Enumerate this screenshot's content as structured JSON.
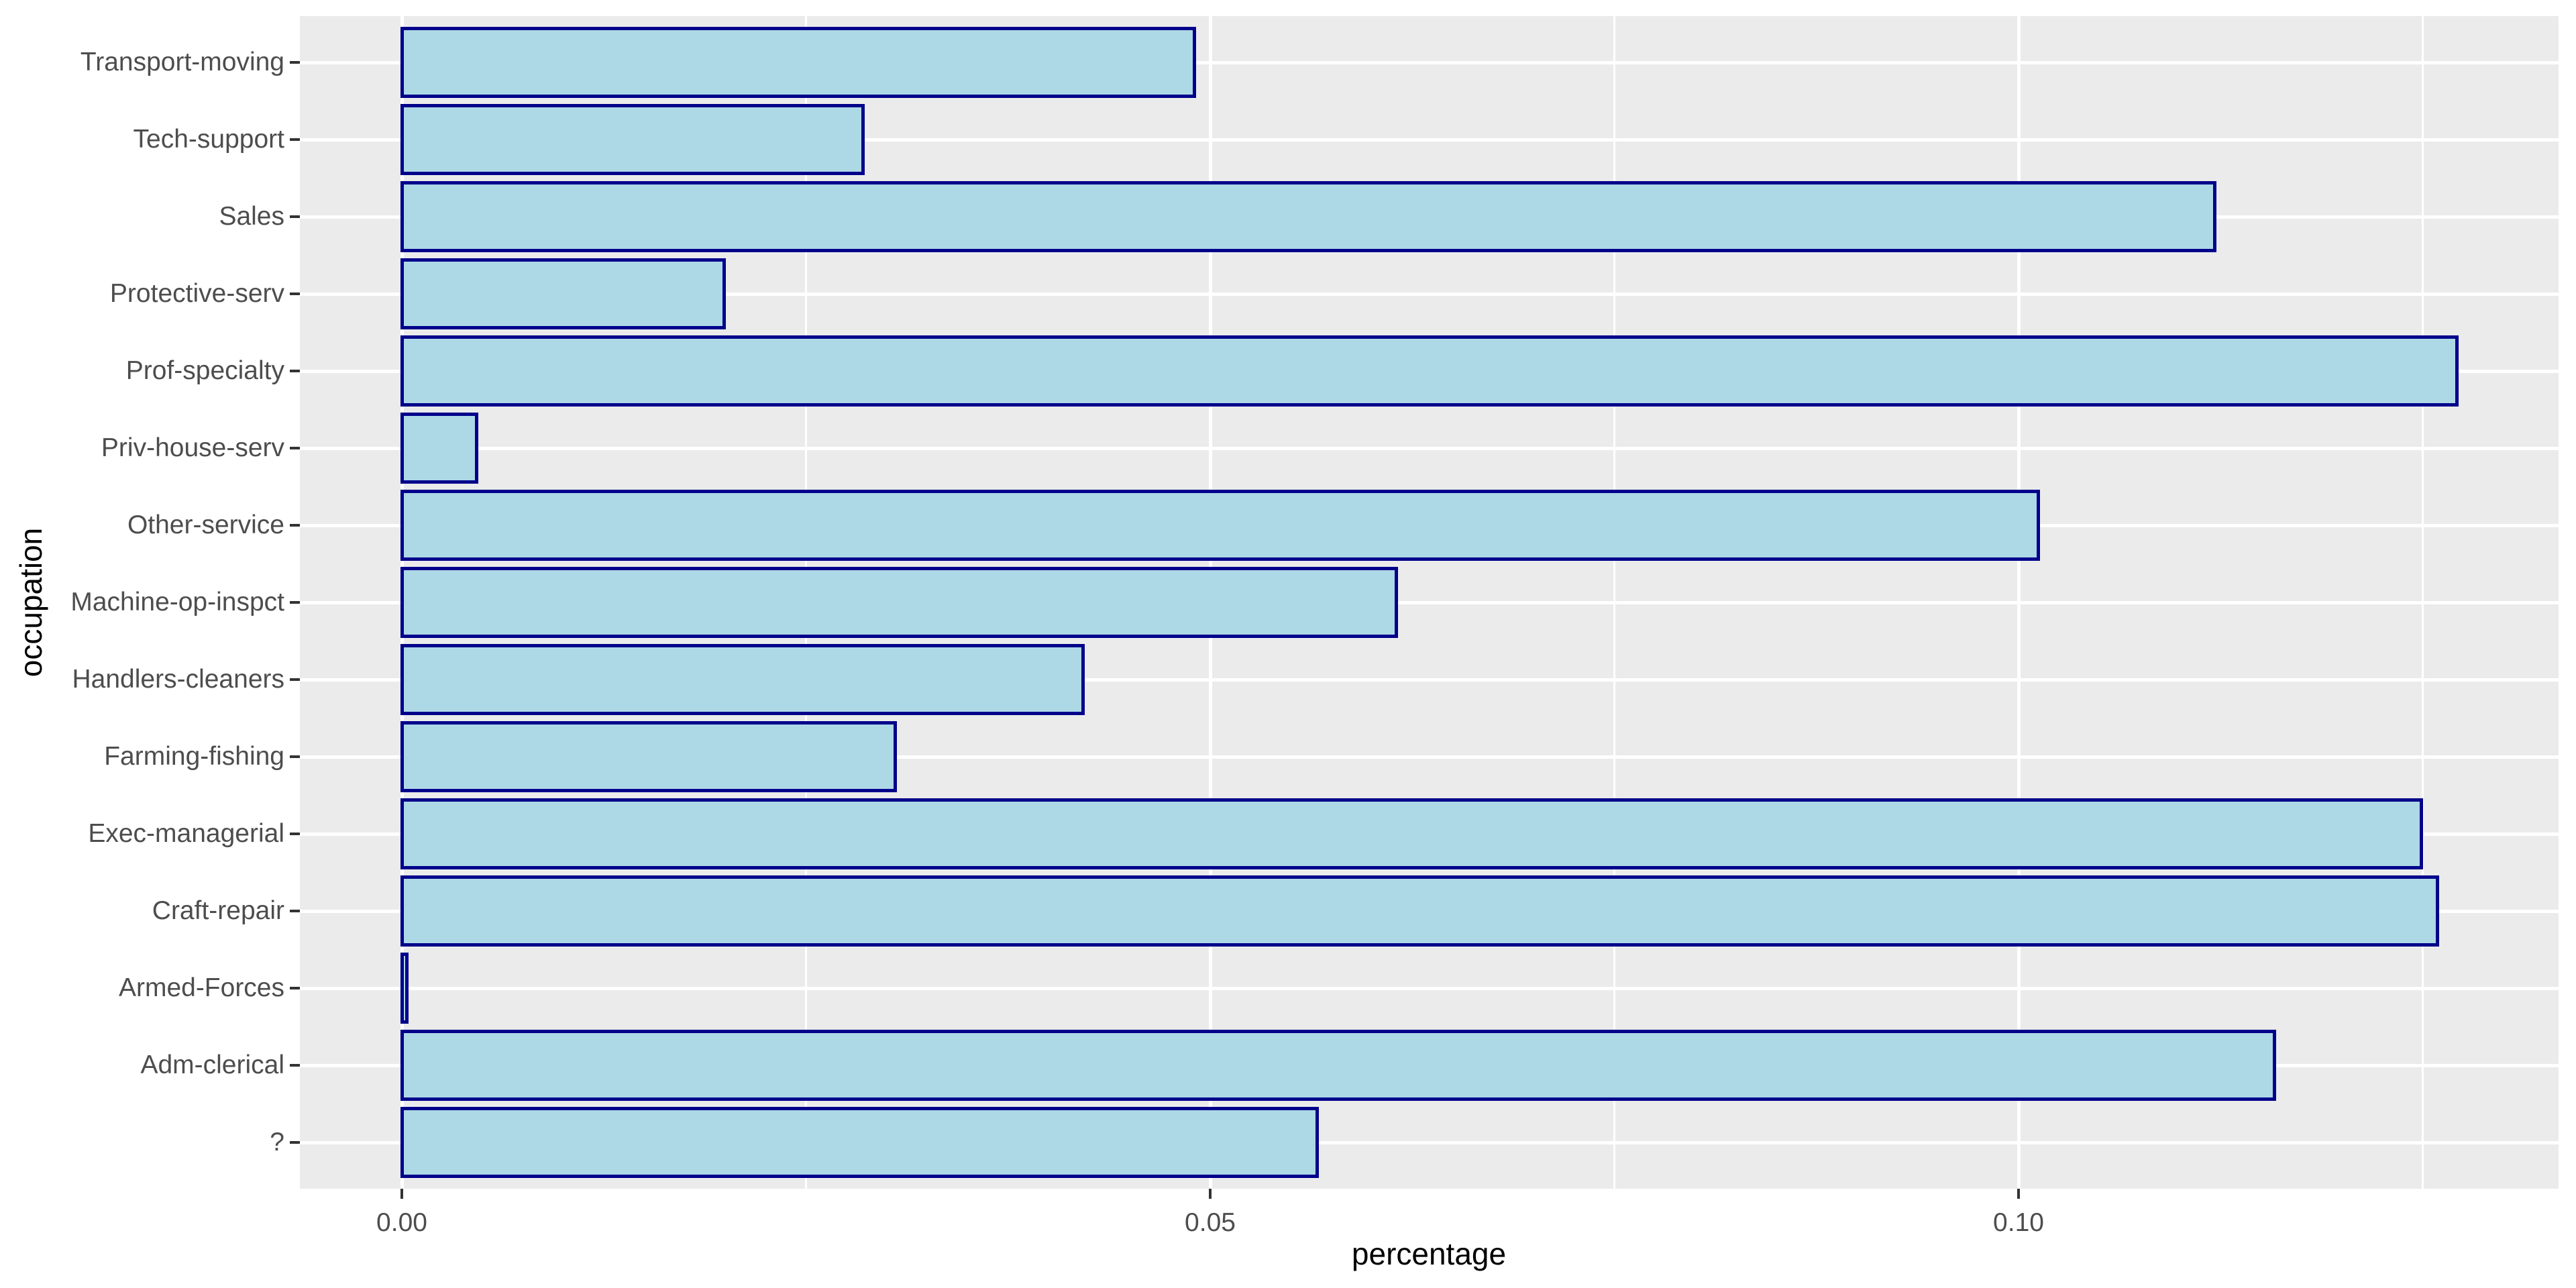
{
  "chart_data": {
    "type": "bar",
    "orientation": "horizontal",
    "title": "",
    "xlabel": "percentage",
    "ylabel": "occupation",
    "grid": true,
    "legend": false,
    "categories": [
      "Transport-moving",
      "Tech-support",
      "Sales",
      "Protective-serv",
      "Prof-specialty",
      "Priv-house-serv",
      "Other-service",
      "Machine-op-inspct",
      "Handlers-cleaners",
      "Farming-fishing",
      "Exec-managerial",
      "Craft-repair",
      "Armed-Forces",
      "Adm-clerical",
      "?"
    ],
    "series": [
      {
        "label": "Transport-moving",
        "value": 0.049
      },
      {
        "label": "Tech-support",
        "value": 0.0285
      },
      {
        "label": "Sales",
        "value": 0.1121
      },
      {
        "label": "Protective-serv",
        "value": 0.0199
      },
      {
        "label": "Prof-specialty",
        "value": 0.1271
      },
      {
        "label": "Priv-house-serv",
        "value": 0.0046
      },
      {
        "label": "Other-service",
        "value": 0.1012
      },
      {
        "label": "Machine-op-inspct",
        "value": 0.0615
      },
      {
        "label": "Handlers-cleaners",
        "value": 0.0421
      },
      {
        "label": "Farming-fishing",
        "value": 0.0305
      },
      {
        "label": "Exec-managerial",
        "value": 0.1249
      },
      {
        "label": "Craft-repair",
        "value": 0.1259
      },
      {
        "label": "Armed-Forces",
        "value": 0.0003
      },
      {
        "label": "Adm-clerical",
        "value": 0.1158
      },
      {
        "label": "?",
        "value": 0.0566
      }
    ],
    "x_axis": {
      "ticks": [
        {
          "label": "0.00",
          "value": 0.0
        },
        {
          "label": "0.05",
          "value": 0.05
        },
        {
          "label": "0.10",
          "value": 0.1
        }
      ],
      "minor_ticks": [
        0.025,
        0.075,
        0.125
      ],
      "range": [
        -0.0063,
        0.1334
      ]
    }
  },
  "style": {
    "bar_fill": "#ADD8E6",
    "bar_border": "#00008B",
    "panel_background": "#EBEBEB",
    "gridline_color": "#FFFFFF",
    "tick_label_color": "#4D4D4D",
    "axis_title_color": "#000000",
    "tick_mark_color": "#333333",
    "figure_background": "#FFFFFF"
  }
}
